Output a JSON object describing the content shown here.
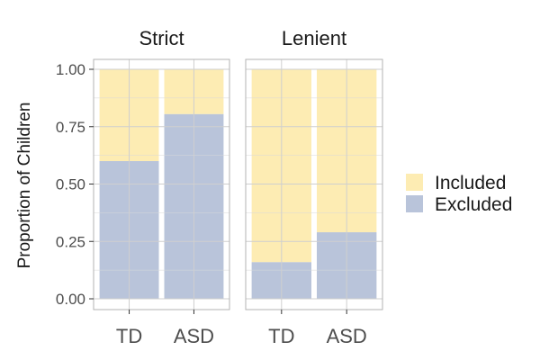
{
  "chart_data": {
    "type": "bar",
    "stacked": true,
    "ylabel": "Proportion of Children",
    "xlabel": "",
    "ylim": [
      0,
      1
    ],
    "y_ticks": [
      "0.00",
      "0.25",
      "0.50",
      "0.75",
      "1.00"
    ],
    "y_tick_values": [
      0,
      0.25,
      0.5,
      0.75,
      1
    ],
    "categories": [
      "TD",
      "ASD"
    ],
    "legend": {
      "position": "right",
      "entries": [
        {
          "name": "Included",
          "color": "#fdecb3"
        },
        {
          "name": "Excluded",
          "color": "#b9c4da"
        }
      ]
    },
    "grid": true,
    "panels": [
      {
        "title": "Strict",
        "series": [
          {
            "name": "Excluded",
            "values": [
              0.6,
              0.805
            ]
          },
          {
            "name": "Included",
            "values": [
              0.4,
              0.195
            ]
          }
        ]
      },
      {
        "title": "Lenient",
        "series": [
          {
            "name": "Excluded",
            "values": [
              0.16,
              0.29
            ]
          },
          {
            "name": "Included",
            "values": [
              0.84,
              0.71
            ]
          }
        ]
      }
    ]
  }
}
